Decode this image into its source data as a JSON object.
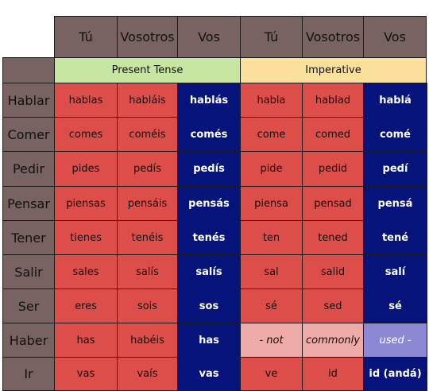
{
  "headers": [
    "Tú",
    "Vosotros",
    "Vos",
    "Tú",
    "Vosotros",
    "Vos"
  ],
  "tenses": {
    "present": "Present Tense",
    "imperative": "Imperative"
  },
  "rows": [
    {
      "verb": "Hablar",
      "cells": [
        "hablas",
        "habláis",
        "hablás",
        "habla",
        "hablad",
        "hablá"
      ]
    },
    {
      "verb": "Comer",
      "cells": [
        "comes",
        "coméis",
        "comés",
        "come",
        "comed",
        "comé"
      ]
    },
    {
      "verb": "Pedir",
      "cells": [
        "pides",
        "pedís",
        "pedís",
        "pide",
        "pedid",
        "pedí"
      ]
    },
    {
      "verb": "Pensar",
      "cells": [
        "piensas",
        "pensáis",
        "pensás",
        "piensa",
        "pensad",
        "pensá"
      ]
    },
    {
      "verb": "Tener",
      "cells": [
        "tienes",
        "tenéis",
        "tenés",
        "ten",
        "tened",
        "tené"
      ]
    },
    {
      "verb": "Salir",
      "cells": [
        "sales",
        "salís",
        "salís",
        "sal",
        "salid",
        "salí"
      ]
    },
    {
      "verb": "Ser",
      "cells": [
        "eres",
        "sois",
        "sos",
        "sé",
        "sed",
        "sé"
      ]
    },
    {
      "verb": "Haber",
      "cells": [
        "has",
        "habéis",
        "has",
        "- not",
        "commonly",
        "used -"
      ]
    },
    {
      "verb": "Ir",
      "cells": [
        "vas",
        "vaís",
        "vas",
        "ve",
        "id",
        "id (andá)"
      ]
    }
  ],
  "colors": {
    "header": "#786362",
    "present_tense": "#c6e6a2",
    "imperative": "#fae09a",
    "tu_vosotros_cell": "#dd4e4a",
    "vos_cell": "#06137a",
    "haber_note": "#edaaa6",
    "haber_note_vos": "#8d88d4"
  }
}
